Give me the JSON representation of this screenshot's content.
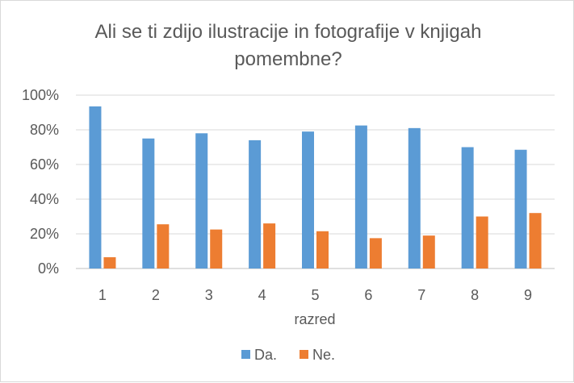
{
  "chart_data": {
    "type": "bar",
    "title_lines": [
      "Ali se ti zdijo ilustracije in fotografije v knjigah",
      "pomembne?"
    ],
    "xlabel": "razred",
    "ylabel": "",
    "categories": [
      "1",
      "2",
      "3",
      "4",
      "5",
      "6",
      "7",
      "8",
      "9"
    ],
    "ylim": [
      0,
      100
    ],
    "yticks": [
      "0%",
      "20%",
      "40%",
      "60%",
      "80%",
      "100%"
    ],
    "grid": true,
    "legend_position": "bottom",
    "series": [
      {
        "name": "Da.",
        "color": "#5b9bd5",
        "values": [
          93.5,
          75,
          78,
          74,
          79,
          82.5,
          81,
          70,
          68.5
        ]
      },
      {
        "name": "Ne.",
        "color": "#ed7d31",
        "values": [
          6.5,
          25.5,
          22.5,
          26,
          21.5,
          17.5,
          19,
          30,
          32
        ]
      }
    ]
  }
}
